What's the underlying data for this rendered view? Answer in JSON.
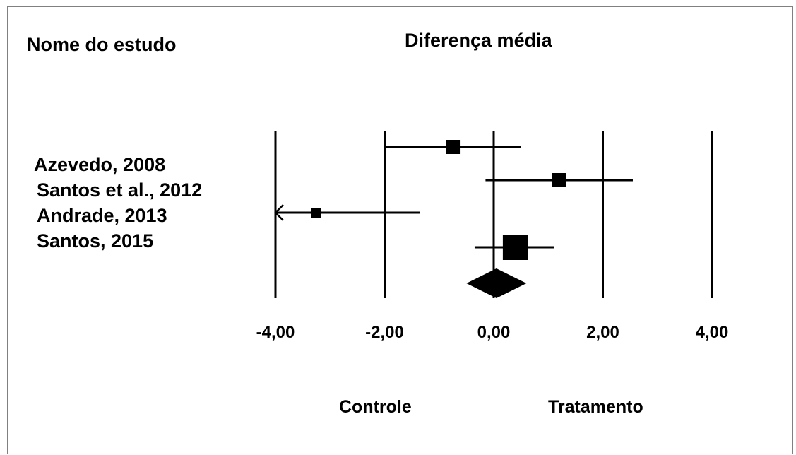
{
  "header": {
    "study_column": "Nome do estudo",
    "title": "Diferença média"
  },
  "studies": [
    {
      "name": "Azevedo, 2008"
    },
    {
      "name": "Santos et al., 2012"
    },
    {
      "name": "Andrade, 2013"
    },
    {
      "name": "Santos, 2015"
    }
  ],
  "favors": {
    "left": "Controle",
    "right": "Tratamento"
  },
  "chart_data": {
    "type": "forest",
    "title": "Diferença média",
    "x_ticks": [
      -4,
      -2,
      0,
      2,
      4
    ],
    "x_tick_labels": [
      "-4,00",
      "-2,00",
      "0,00",
      "2,00",
      "4,00"
    ],
    "xlim": [
      -4,
      4
    ],
    "studies": [
      {
        "name": "Azevedo, 2008",
        "estimate": -0.75,
        "lower": -2.0,
        "upper": 0.5,
        "weight": "medium"
      },
      {
        "name": "Santos et al., 2012",
        "estimate": 1.2,
        "lower": -0.15,
        "upper": 2.55,
        "weight": "medium"
      },
      {
        "name": "Andrade, 2013",
        "estimate": -3.25,
        "lower": -5.0,
        "upper": -1.35,
        "weight": "small",
        "lower_truncated": true
      },
      {
        "name": "Santos, 2015",
        "estimate": 0.4,
        "lower": -0.35,
        "upper": 1.1,
        "weight": "large"
      }
    ],
    "summary": {
      "estimate": 0.05,
      "lower": -0.5,
      "upper": 0.6
    },
    "colors": {
      "marks": "#000000",
      "frame": "#808080"
    }
  }
}
